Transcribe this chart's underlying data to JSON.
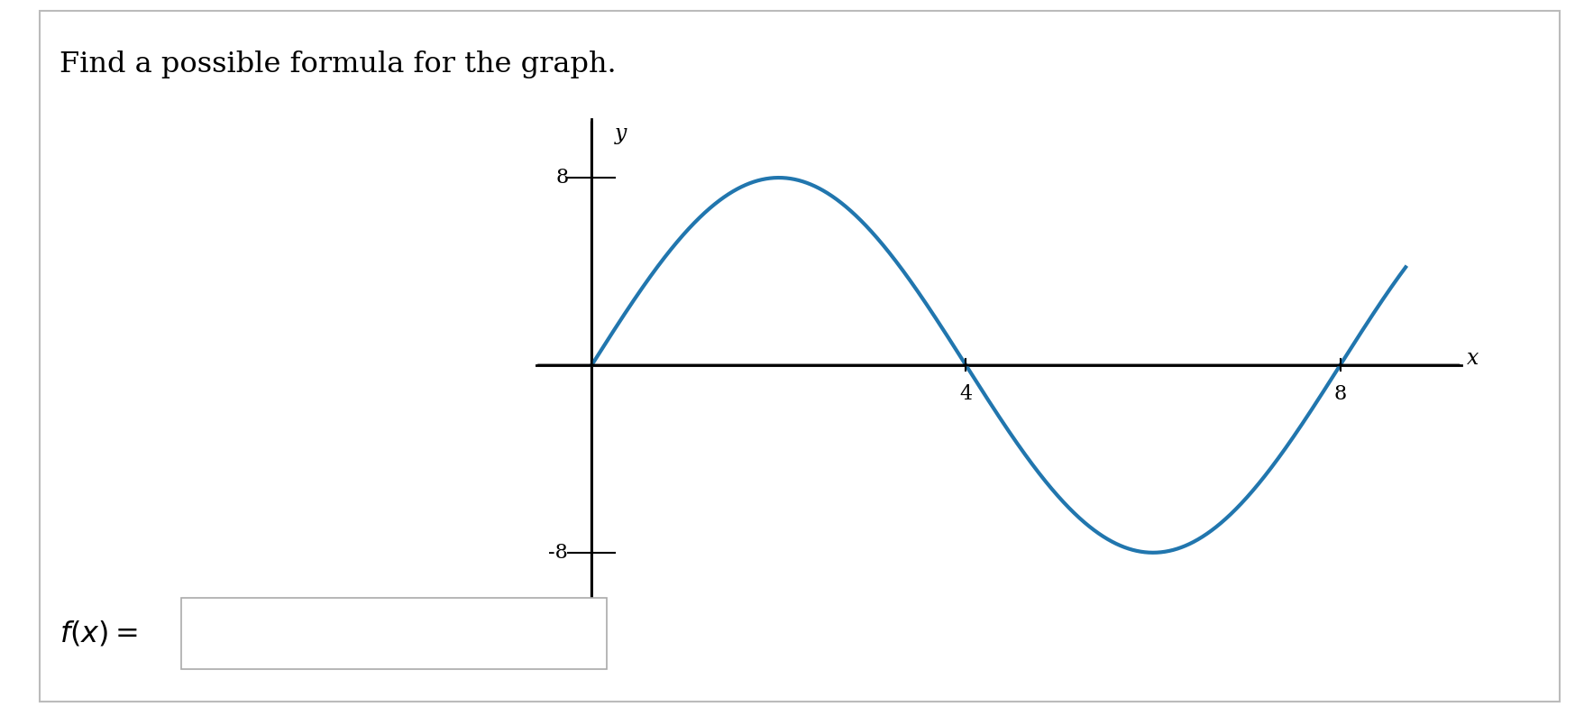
{
  "title": "Find a possible formula for the graph.",
  "curve_color": "#2176AE",
  "curve_linewidth": 3.0,
  "amplitude": 8,
  "period": 8,
  "x_start": 0,
  "x_end": 8.7,
  "xlim": [
    -0.6,
    9.5
  ],
  "ylim": [
    -11,
    11
  ],
  "x_ticks": [
    4,
    8
  ],
  "y_ticks": [
    8,
    -8
  ],
  "y_tick_labels": [
    "8",
    "-8"
  ],
  "x_label": "x",
  "y_label": "y",
  "label_fontsize": 17,
  "tick_fontsize": 16,
  "title_fontsize": 23,
  "background_color": "#ffffff",
  "border_color": "#bbbbbb",
  "phase_shift": 0
}
